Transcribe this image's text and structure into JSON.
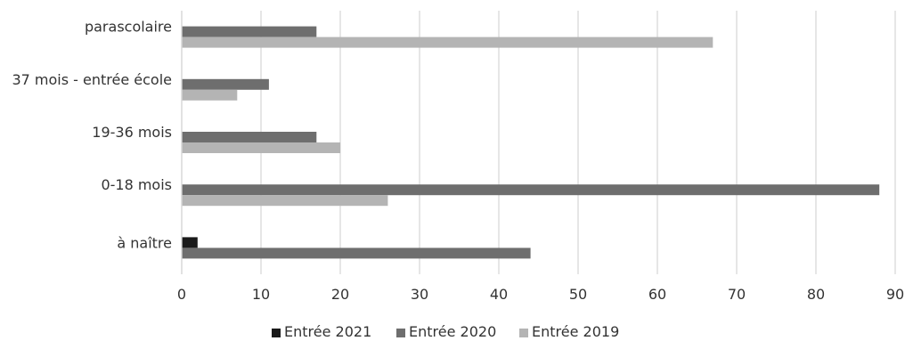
{
  "chart_data": {
    "type": "bar",
    "orientation": "horizontal",
    "categories": [
      "parascolaire",
      "37 mois - entrée école",
      "19-36 mois",
      "0-18 mois",
      "à naître"
    ],
    "series": [
      {
        "name": "Entrée 2021",
        "color": "#1a1a1a",
        "values": [
          0,
          0,
          0,
          0,
          2
        ]
      },
      {
        "name": "Entrée 2020",
        "color": "#6e6e6e",
        "values": [
          17,
          11,
          17,
          88,
          44
        ]
      },
      {
        "name": "Entrée 2019",
        "color": "#b4b4b4",
        "values": [
          67,
          7,
          20,
          26,
          0
        ]
      }
    ],
    "xlim": [
      0,
      90
    ],
    "xticks": [
      0,
      10,
      20,
      30,
      40,
      50,
      60,
      70,
      80,
      90
    ],
    "grid": "vertical",
    "legend": "bottom-center"
  }
}
